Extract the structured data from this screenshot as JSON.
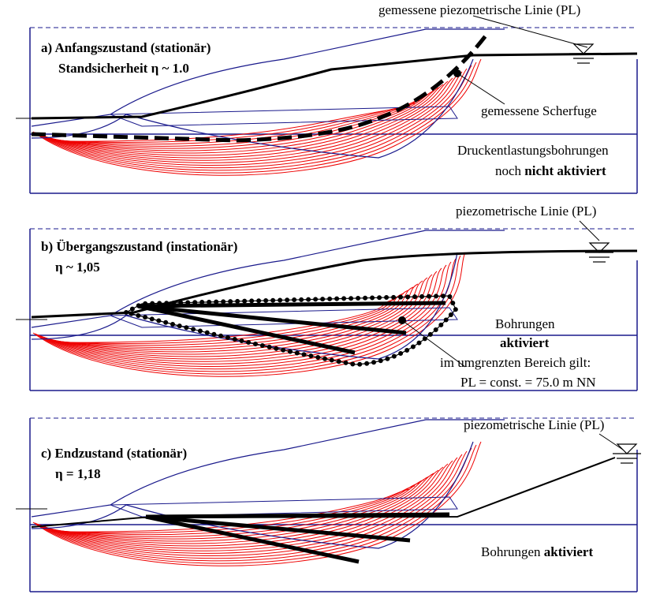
{
  "panels": [
    {
      "title": "a) Anfangszustand (stationär)",
      "subtitle": "Standsicherheit η ~ 1.0",
      "pl_label": "gemessene piezometrische Linie (PL)",
      "shear_label": "gemessene Scherfuge",
      "note_1": "Druckentlastungsbohrungen",
      "note_2a": "noch",
      "note_2b": "nicht aktiviert"
    },
    {
      "title": "b) Übergangszustand (instationär)",
      "subtitle": "η ~ 1,05",
      "pl_label": "piezometrische Linie (PL)",
      "note_1": "Bohrungen",
      "note_2": "aktiviert",
      "note_3": "im umgrenzten Bereich gilt:",
      "note_4": "PL = const. = 75.0 m NN"
    },
    {
      "title": "c) Endzustand (stationär)",
      "subtitle": "η = 1,18",
      "pl_label": "piezometrische Linie (PL)",
      "note_1a": "Bohrungen",
      "note_1b": "aktiviert"
    }
  ]
}
